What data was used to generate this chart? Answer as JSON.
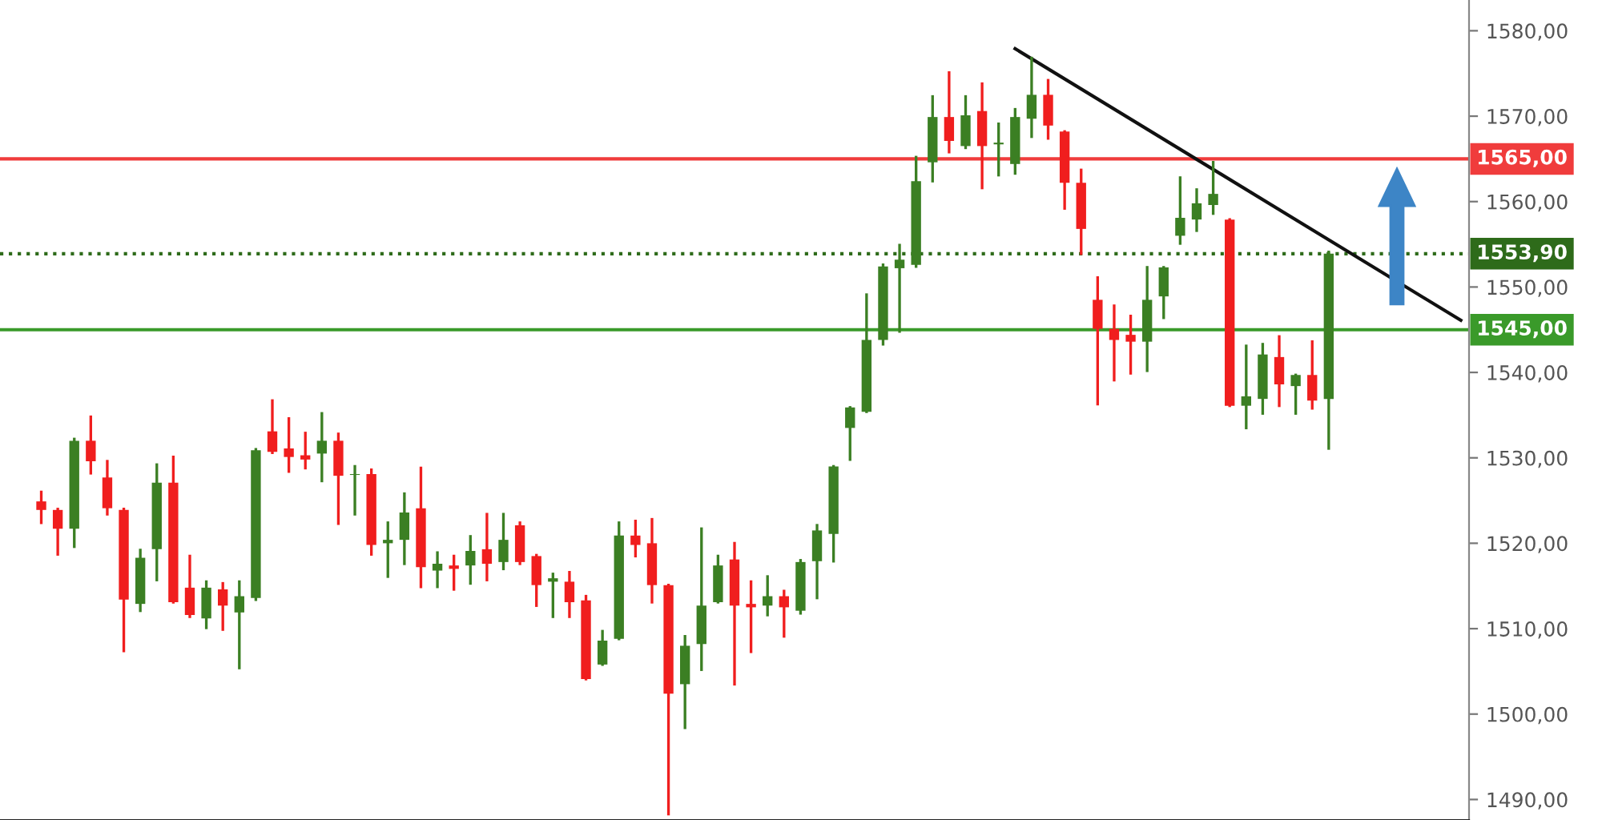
{
  "chart_data": {
    "type": "candlestick",
    "categories": [
      null,
      null,
      null,
      null,
      null,
      null,
      null,
      null,
      null,
      null,
      null,
      null,
      null,
      null,
      null,
      null,
      null,
      null,
      null,
      null,
      null,
      null,
      null,
      null,
      null,
      null,
      null,
      null,
      null,
      null,
      null,
      null,
      null,
      null,
      null,
      null,
      null,
      null,
      null,
      null,
      null,
      null,
      null,
      null,
      null,
      null,
      null,
      null,
      null,
      null,
      null,
      null,
      null,
      null,
      null,
      null,
      null,
      null,
      null,
      null,
      null,
      null,
      null,
      null,
      null,
      null,
      null,
      null,
      null,
      null,
      null,
      null,
      null,
      null,
      null,
      null,
      null,
      null,
      null,
      null,
      null,
      null,
      null,
      null,
      null,
      null,
      null,
      null,
      null
    ],
    "ohlc": [
      null,
      null,
      [
        1524.9,
        1526.0,
        1522.4,
        1523.9
      ],
      [
        1523.9,
        1524.0,
        1518.7,
        1521.7
      ],
      [
        1521.7,
        1532.2,
        1519.6,
        1532.0
      ],
      [
        1532.0,
        1534.8,
        1528.2,
        1529.6
      ],
      [
        1527.7,
        1529.6,
        1523.4,
        1524.1
      ],
      [
        1523.9,
        1524.0,
        1507.4,
        1513.4
      ],
      [
        1512.9,
        1519.2,
        1512.1,
        1518.3
      ],
      [
        1519.3,
        1529.2,
        1515.7,
        1527.1
      ],
      [
        1527.1,
        1530.1,
        1513.1,
        1513.1
      ],
      [
        1514.8,
        1518.5,
        1511.4,
        1511.6
      ],
      [
        1511.2,
        1515.5,
        1510.1,
        1514.8
      ],
      [
        1514.6,
        1515.3,
        1509.9,
        1512.7
      ],
      [
        1511.9,
        1515.5,
        1505.4,
        1513.8
      ],
      [
        1513.6,
        1531.0,
        1513.4,
        1530.9
      ],
      [
        1533.1,
        1536.7,
        1530.6,
        1530.7
      ],
      [
        1531.1,
        1534.6,
        1528.4,
        1530.1
      ],
      [
        1530.3,
        1532.9,
        1528.8,
        1529.8
      ],
      [
        1530.5,
        1535.2,
        1527.3,
        1532.0
      ],
      [
        1532.0,
        1532.8,
        1522.3,
        1527.9
      ],
      [
        1528.0,
        1529.0,
        1523.4,
        1528.1
      ],
      [
        1528.1,
        1528.6,
        1518.7,
        1519.8
      ],
      [
        1520.0,
        1522.4,
        1516.1,
        1520.4
      ],
      [
        1520.4,
        1525.8,
        1517.6,
        1523.6
      ],
      [
        1524.1,
        1528.8,
        1514.9,
        1517.2
      ],
      [
        1516.8,
        1518.9,
        1514.9,
        1517.6
      ],
      [
        1517.4,
        1518.5,
        1514.6,
        1517.0
      ],
      [
        1517.4,
        1520.8,
        1515.3,
        1519.1
      ],
      [
        1519.3,
        1523.4,
        1515.7,
        1517.6
      ],
      [
        1517.8,
        1523.4,
        1517.0,
        1520.4
      ],
      [
        1522.1,
        1522.4,
        1517.6,
        1517.8
      ],
      [
        1518.5,
        1518.6,
        1512.7,
        1515.1
      ],
      [
        1515.5,
        1516.4,
        1511.4,
        1515.9
      ],
      [
        1515.5,
        1516.6,
        1511.4,
        1513.1
      ],
      [
        1513.3,
        1513.8,
        1504.1,
        1504.1
      ],
      [
        1505.8,
        1509.7,
        1505.8,
        1508.6
      ],
      [
        1508.8,
        1522.4,
        1508.8,
        1520.9
      ],
      [
        1520.9,
        1522.6,
        1518.5,
        1519.8
      ],
      [
        1520.0,
        1522.8,
        1513.1,
        1515.1
      ],
      [
        1515.1,
        1515.1,
        1488.3,
        1502.4
      ],
      [
        1503.5,
        1509.1,
        1498.4,
        1508.0
      ],
      [
        1508.2,
        1521.7,
        1505.2,
        1512.7
      ],
      [
        1513.1,
        1518.5,
        1513.1,
        1517.4
      ],
      [
        1518.1,
        1520.0,
        1503.5,
        1512.7
      ],
      [
        1512.9,
        1515.5,
        1507.3,
        1512.5
      ],
      [
        1512.7,
        1516.1,
        1511.6,
        1513.8
      ],
      [
        1513.8,
        1514.4,
        1509.1,
        1512.5
      ],
      [
        1512.1,
        1518.0,
        1511.8,
        1517.8
      ],
      [
        1517.9,
        1522.1,
        1513.6,
        1521.5
      ],
      [
        1521.1,
        1529.0,
        1517.9,
        1529.0
      ],
      [
        1533.5,
        1535.9,
        1529.8,
        1535.9
      ],
      [
        1535.4,
        1549.1,
        1535.4,
        1543.8
      ],
      [
        1543.8,
        1552.6,
        1543.3,
        1552.4
      ],
      [
        1552.2,
        1554.9,
        1544.8,
        1553.2
      ],
      [
        1552.6,
        1565.2,
        1552.4,
        1562.4
      ],
      [
        1564.6,
        1572.3,
        1562.4,
        1569.9
      ],
      [
        1569.9,
        1575.1,
        1565.8,
        1567.1
      ],
      [
        1566.5,
        1572.3,
        1566.3,
        1570.1
      ],
      [
        1570.6,
        1573.8,
        1561.6,
        1566.5
      ],
      [
        1566.7,
        1569.1,
        1563.1,
        1566.9
      ],
      [
        1564.4,
        1570.8,
        1563.3,
        1569.9
      ],
      [
        1569.7,
        1576.8,
        1567.6,
        1572.5
      ],
      [
        1572.5,
        1574.2,
        1567.4,
        1568.9
      ],
      [
        1568.2,
        1568.2,
        1559.2,
        1562.2
      ],
      [
        1562.2,
        1563.7,
        1553.9,
        1556.8
      ],
      [
        1548.5,
        1551.1,
        1536.3,
        1545.1
      ],
      [
        1545.1,
        1547.8,
        1539.1,
        1543.8
      ],
      [
        1544.4,
        1546.6,
        1539.9,
        1543.6
      ],
      [
        1543.6,
        1552.3,
        1540.2,
        1548.5
      ],
      [
        1548.9,
        1552.3,
        1546.4,
        1552.3
      ],
      [
        1556.0,
        1562.8,
        1555.1,
        1558.1
      ],
      [
        1557.9,
        1561.4,
        1556.6,
        1559.8
      ],
      [
        1559.6,
        1564.6,
        1558.6,
        1560.9
      ],
      [
        1557.9,
        1557.9,
        1536.1,
        1536.1
      ],
      [
        1536.1,
        1543.1,
        1533.5,
        1537.2
      ],
      [
        1536.9,
        1543.3,
        1535.2,
        1542.1
      ],
      [
        1541.8,
        1544.2,
        1536.1,
        1538.6
      ],
      [
        1538.4,
        1539.7,
        1535.2,
        1539.7
      ],
      [
        1539.7,
        1543.6,
        1535.8,
        1536.7
      ],
      [
        1536.9,
        1554.1,
        1531.1,
        1553.9
      ],
      null,
      null,
      null,
      null,
      null,
      null,
      null,
      null
    ],
    "colors": [
      null,
      null,
      "#f01e1e",
      "#f01e1e",
      "#3b7f23",
      "#f01e1e",
      "#f01e1e",
      "#f01e1e",
      "#3b7f23",
      "#3b7f23",
      "#f01e1e",
      "#f01e1e",
      "#3b7f23",
      "#f01e1e",
      "#3b7f23",
      "#3b7f23",
      "#f01e1e",
      "#f01e1e",
      "#f01e1e",
      "#3b7f23",
      "#f01e1e",
      "#3b7f23",
      "#f01e1e",
      "#3b7f23",
      "#3b7f23",
      "#f01e1e",
      "#3b7f23",
      "#f01e1e",
      "#3b7f23",
      "#f01e1e",
      "#3b7f23",
      "#f01e1e",
      "#f01e1e",
      "#3b7f23",
      "#f01e1e",
      "#f01e1e",
      "#3b7f23",
      "#3b7f23",
      "#f01e1e",
      "#f01e1e",
      "#f01e1e",
      "#3b7f23",
      "#3b7f23",
      "#3b7f23",
      "#f01e1e",
      "#f01e1e",
      "#3b7f23",
      "#f01e1e",
      "#3b7f23",
      "#3b7f23",
      "#3b7f23",
      "#3b7f23",
      "#3b7f23",
      "#3b7f23",
      "#3b7f23",
      "#3b7f23",
      "#3b7f23",
      "#f01e1e",
      "#3b7f23",
      "#f01e1e",
      "#3b7f23",
      "#3b7f23",
      "#3b7f23",
      "#f01e1e",
      "#f01e1e",
      "#f01e1e",
      "#f01e1e",
      "#f01e1e",
      "#f01e1e",
      "#3b7f23",
      "#3b7f23",
      "#3b7f23",
      "#3b7f23",
      "#3b7f23",
      "#f01e1e",
      "#3b7f23",
      "#3b7f23",
      "#f01e1e",
      "#3b7f23",
      "#f01e1e",
      "#3b7f23",
      null,
      null,
      null,
      null,
      null,
      null,
      null,
      null
    ],
    "ylim": [
      1487.6,
      1583.6
    ],
    "yticks": [
      {
        "value": 1490,
        "label": "1490,00"
      },
      {
        "value": 1500,
        "label": "1500,00"
      },
      {
        "value": 1510,
        "label": "1510,00"
      },
      {
        "value": 1520,
        "label": "1520,00"
      },
      {
        "value": 1530,
        "label": "1530,00"
      },
      {
        "value": 1540,
        "label": "1540,00"
      },
      {
        "value": 1550,
        "label": "1550,00"
      },
      {
        "value": 1560,
        "label": "1560,00"
      },
      {
        "value": 1570,
        "label": "1570,00"
      },
      {
        "value": 1580,
        "label": "1580,00"
      }
    ],
    "ref_lines": [
      {
        "axis": "y",
        "value": 1565,
        "label": "1565,00",
        "color": "#f03c3c",
        "line_style": "solid"
      },
      {
        "axis": "y",
        "value": 1553.9,
        "label": "1553,90",
        "color": "#2e6b1a",
        "line_style": "dotted"
      },
      {
        "axis": "y",
        "value": 1545,
        "label": "1545,00",
        "color": "#3a9a2a",
        "line_style": "solid"
      }
    ],
    "series": [
      {
        "type": "line",
        "values": [
          null,
          null,
          null,
          null,
          null,
          null,
          null,
          null,
          null,
          null,
          null,
          null,
          null,
          null,
          null,
          null,
          null,
          null,
          null,
          null,
          null,
          null,
          null,
          null,
          null,
          null,
          null,
          null,
          null,
          null,
          null,
          null,
          null,
          null,
          null,
          null,
          null,
          null,
          null,
          null,
          null,
          null,
          null,
          null,
          null,
          null,
          null,
          null,
          null,
          null,
          null,
          null,
          null,
          null,
          null,
          null,
          null,
          null,
          null,
          null,
          null,
          1577.9,
          null,
          null,
          null,
          null,
          null,
          null,
          null,
          null,
          null,
          null,
          null,
          null,
          null,
          null,
          null,
          null,
          null,
          null,
          null,
          null,
          null,
          null,
          null,
          null,
          null,
          null,
          1546.1
        ],
        "color": "#111111"
      }
    ],
    "grid": false,
    "legend": false,
    "tick_labels": "y"
  }
}
